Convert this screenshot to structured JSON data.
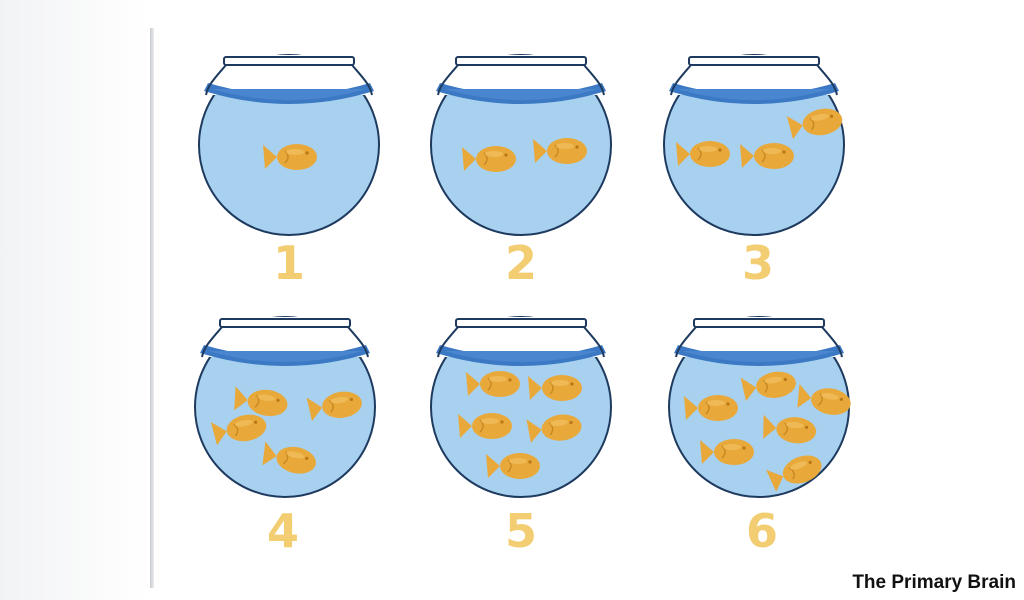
{
  "bowls": [
    {
      "number": "1",
      "crackers": 1
    },
    {
      "number": "2",
      "crackers": 2
    },
    {
      "number": "3",
      "crackers": 3
    },
    {
      "number": "4",
      "crackers": 4
    },
    {
      "number": "5",
      "crackers": 5
    },
    {
      "number": "6",
      "crackers": 6
    }
  ],
  "credit": "The Primary Brain",
  "colors": {
    "bowl_water": "#a8d1ef",
    "bowl_outline": "#1e3a5f",
    "water_band": "#3b79c4",
    "cracker": "#e8a93a",
    "number": "#f2cd72"
  },
  "icon_names": [
    "fishbowl-icon",
    "goldfish-cracker-icon"
  ]
}
